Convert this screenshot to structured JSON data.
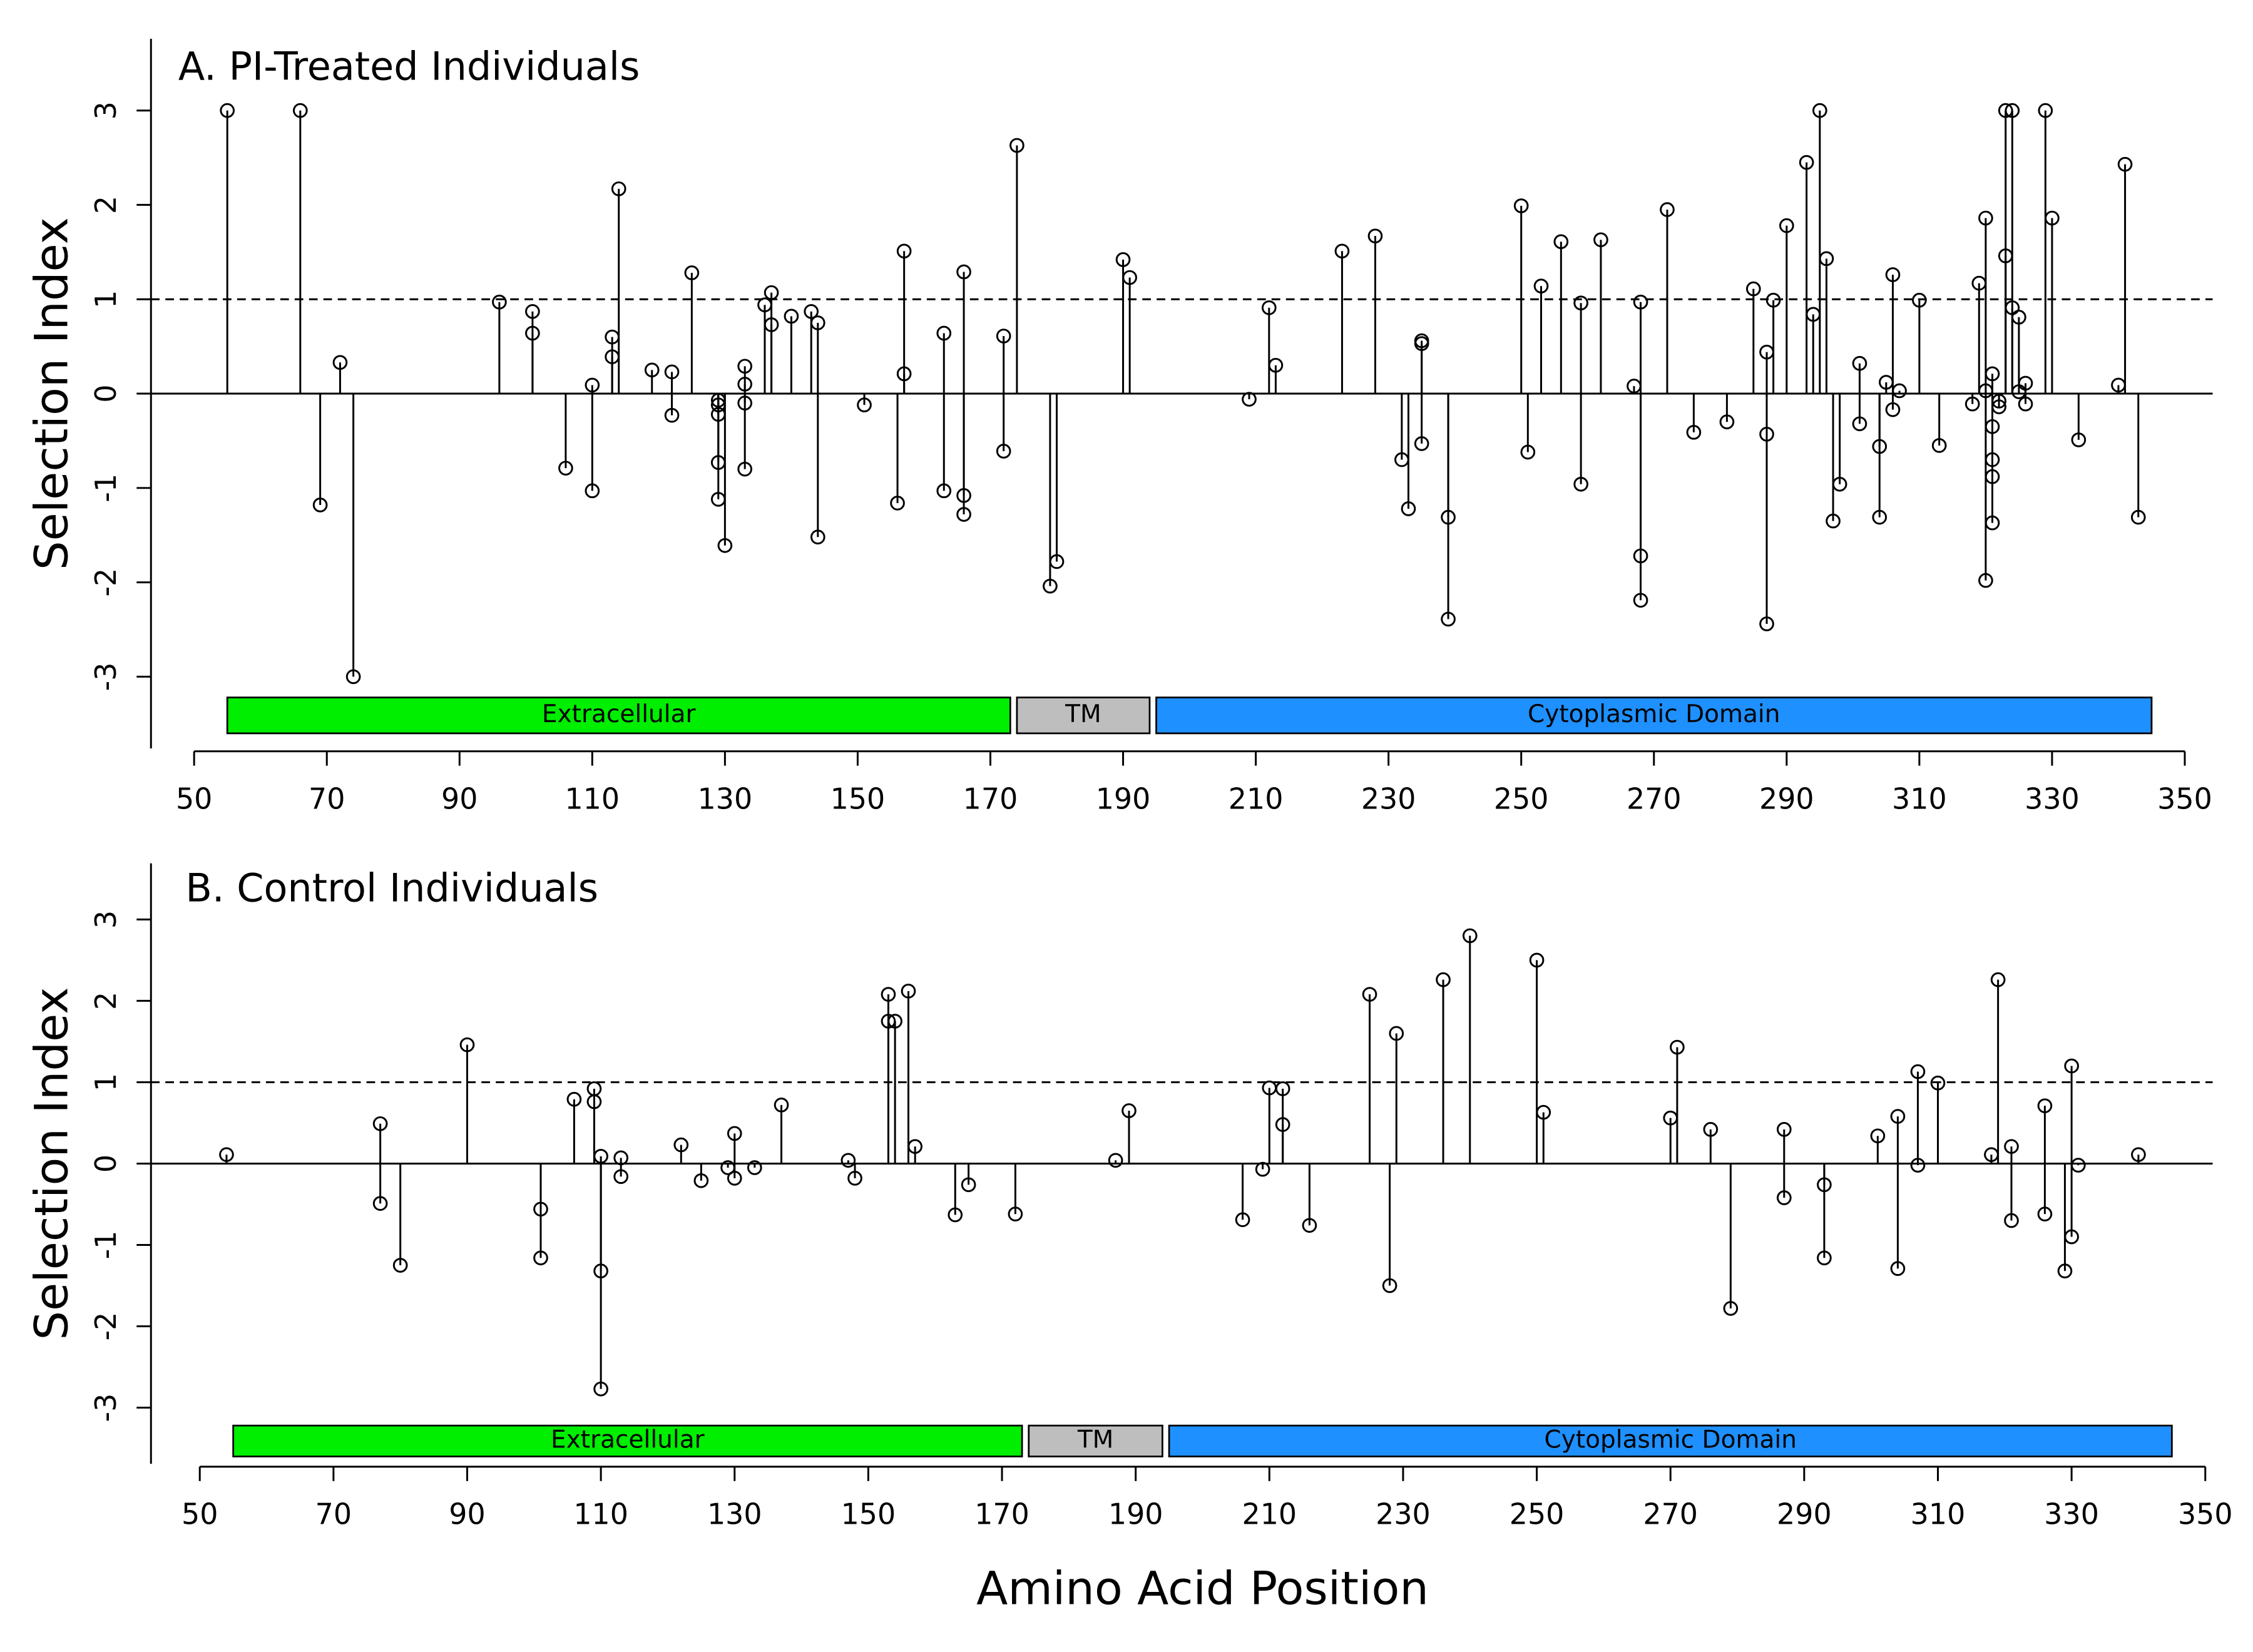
{
  "chart_data": [
    {
      "type": "stem",
      "title": "A. PI-Treated Individuals",
      "ylabel": "Selection Index",
      "x": [
        55,
        66,
        72,
        69,
        74,
        96,
        101,
        101,
        106,
        110,
        110,
        113,
        113,
        114,
        119,
        122,
        122,
        125,
        129,
        129,
        129,
        129,
        129,
        130,
        133,
        133,
        133,
        133,
        136,
        137,
        137,
        140,
        143,
        144,
        144,
        151,
        156,
        157,
        157,
        163,
        163,
        166,
        166,
        166,
        172,
        172,
        174,
        179,
        180,
        190,
        191,
        209,
        212,
        213,
        223,
        228,
        232,
        233,
        235,
        235,
        235,
        239,
        239,
        250,
        251,
        253,
        256,
        259,
        259,
        262,
        267,
        268,
        268,
        268,
        272,
        276,
        281,
        285,
        287,
        287,
        287,
        288,
        290,
        293,
        294,
        295,
        296,
        297,
        298,
        301,
        301,
        304,
        304,
        305,
        306,
        306,
        307,
        310,
        313,
        318,
        319,
        320,
        320,
        320,
        321,
        321,
        321,
        321,
        321,
        322,
        322,
        323,
        323,
        324,
        324,
        325,
        325,
        326,
        326,
        329,
        330,
        334,
        340,
        341,
        343
      ],
      "values": [
        3,
        3,
        0.33,
        -1.18,
        -3,
        0.97,
        0.87,
        0.64,
        -0.79,
        0.09,
        -1.03,
        0.6,
        0.39,
        2.17,
        0.25,
        0.23,
        -0.23,
        1.28,
        -0.07,
        -0.12,
        -0.22,
        -0.73,
        -1.12,
        -1.61,
        0.29,
        0.1,
        -0.1,
        -0.8,
        0.94,
        1.07,
        0.73,
        0.82,
        0.87,
        0.75,
        -1.52,
        -0.12,
        -1.16,
        1.51,
        0.21,
        0.64,
        -1.03,
        1.29,
        -1.08,
        -1.28,
        0.61,
        -0.61,
        2.63,
        -2.04,
        -1.78,
        1.42,
        1.23,
        -0.06,
        0.91,
        0.3,
        1.51,
        1.67,
        -0.7,
        -1.22,
        0.56,
        0.53,
        -0.53,
        -1.31,
        -2.39,
        1.99,
        -0.62,
        1.14,
        1.61,
        0.96,
        -0.96,
        1.63,
        0.08,
        0.97,
        -1.72,
        -2.19,
        1.95,
        -0.41,
        -0.3,
        1.11,
        0.44,
        -0.43,
        -2.44,
        0.99,
        1.78,
        2.45,
        0.84,
        3,
        1.43,
        -1.35,
        -0.96,
        0.32,
        -0.32,
        -0.56,
        -1.31,
        0.12,
        1.26,
        -0.17,
        0.03,
        0.99,
        -0.55,
        -0.11,
        1.17,
        1.86,
        0.03,
        -1.98,
        0.21,
        -0.35,
        -0.7,
        -0.88,
        -1.37,
        -0.08,
        -0.14,
        3,
        1.46,
        3,
        0.91,
        0.81,
        0.02,
        0.11,
        -0.11,
        3,
        1.86,
        -0.49,
        0.09,
        2.43,
        -1.31
      ],
      "xlim": [
        43.5,
        354.2
      ],
      "ylim": [
        -3.76,
        3.76
      ],
      "xticks": [
        50,
        70,
        90,
        110,
        130,
        150,
        170,
        190,
        210,
        230,
        250,
        270,
        290,
        310,
        330,
        350
      ],
      "yticks": [
        -3,
        -2,
        -1,
        0,
        1,
        2,
        3
      ],
      "hline": 1,
      "domains": [
        {
          "label": "Extracellular",
          "start": 55,
          "end": 173,
          "color": "#00ee00"
        },
        {
          "label": "TM",
          "start": 174,
          "end": 194,
          "color": "#bebebe"
        },
        {
          "label": "Cytoplasmic Domain",
          "start": 195,
          "end": 345,
          "color": "#1e90ff"
        }
      ]
    },
    {
      "type": "stem",
      "title": "B. Control Individuals",
      "ylabel": "Selection Index",
      "xlabel": "Amino Acid Position",
      "x": [
        54,
        77,
        77,
        80,
        90,
        101,
        101,
        106,
        109,
        109,
        110,
        110,
        110,
        113,
        113,
        122,
        125,
        129,
        130,
        130,
        133,
        137,
        147,
        148,
        153,
        153,
        154,
        156,
        157,
        163,
        165,
        172,
        187,
        189,
        206,
        209,
        210,
        212,
        212,
        216,
        225,
        228,
        229,
        236,
        240,
        250,
        251,
        270,
        271,
        276,
        279,
        287,
        287,
        293,
        293,
        301,
        304,
        304,
        307,
        307,
        310,
        318,
        319,
        321,
        321,
        326,
        326,
        329,
        330,
        330,
        331,
        340
      ],
      "values": [
        0.11,
        0.49,
        -0.49,
        -1.25,
        1.46,
        -0.56,
        -1.16,
        0.79,
        0.92,
        0.76,
        0.09,
        -1.32,
        -2.77,
        0.07,
        -0.16,
        0.23,
        -0.21,
        -0.05,
        0.37,
        -0.18,
        -0.05,
        0.72,
        0.04,
        -0.18,
        2.08,
        1.75,
        1.75,
        2.12,
        0.21,
        -0.63,
        -0.26,
        -0.62,
        0.04,
        0.65,
        -0.69,
        -0.07,
        0.93,
        0.92,
        0.48,
        -0.76,
        2.08,
        -1.5,
        1.6,
        2.26,
        2.8,
        2.5,
        0.63,
        0.56,
        1.43,
        0.42,
        -1.78,
        0.42,
        -0.42,
        -0.26,
        -1.16,
        0.34,
        0.58,
        -1.29,
        1.13,
        -0.02,
        0.99,
        0.11,
        2.26,
        0.21,
        -0.7,
        0.71,
        -0.62,
        -1.32,
        1.2,
        -0.9,
        -0.02,
        0.11
      ],
      "xlim": [
        42.7,
        351.1
      ],
      "ylim": [
        -3.69,
        3.69
      ],
      "xticks": [
        50,
        70,
        90,
        110,
        130,
        150,
        170,
        190,
        210,
        230,
        250,
        270,
        290,
        310,
        330,
        350
      ],
      "yticks": [
        -3,
        -2,
        -1,
        0,
        1,
        2,
        3
      ],
      "hline": 1,
      "domains": [
        {
          "label": "Extracellular",
          "start": 55,
          "end": 173,
          "color": "#00ee00"
        },
        {
          "label": "TM",
          "start": 174,
          "end": 194,
          "color": "#bebebe"
        },
        {
          "label": "Cytoplasmic Domain",
          "start": 195,
          "end": 345,
          "color": "#1e90ff"
        }
      ]
    }
  ]
}
